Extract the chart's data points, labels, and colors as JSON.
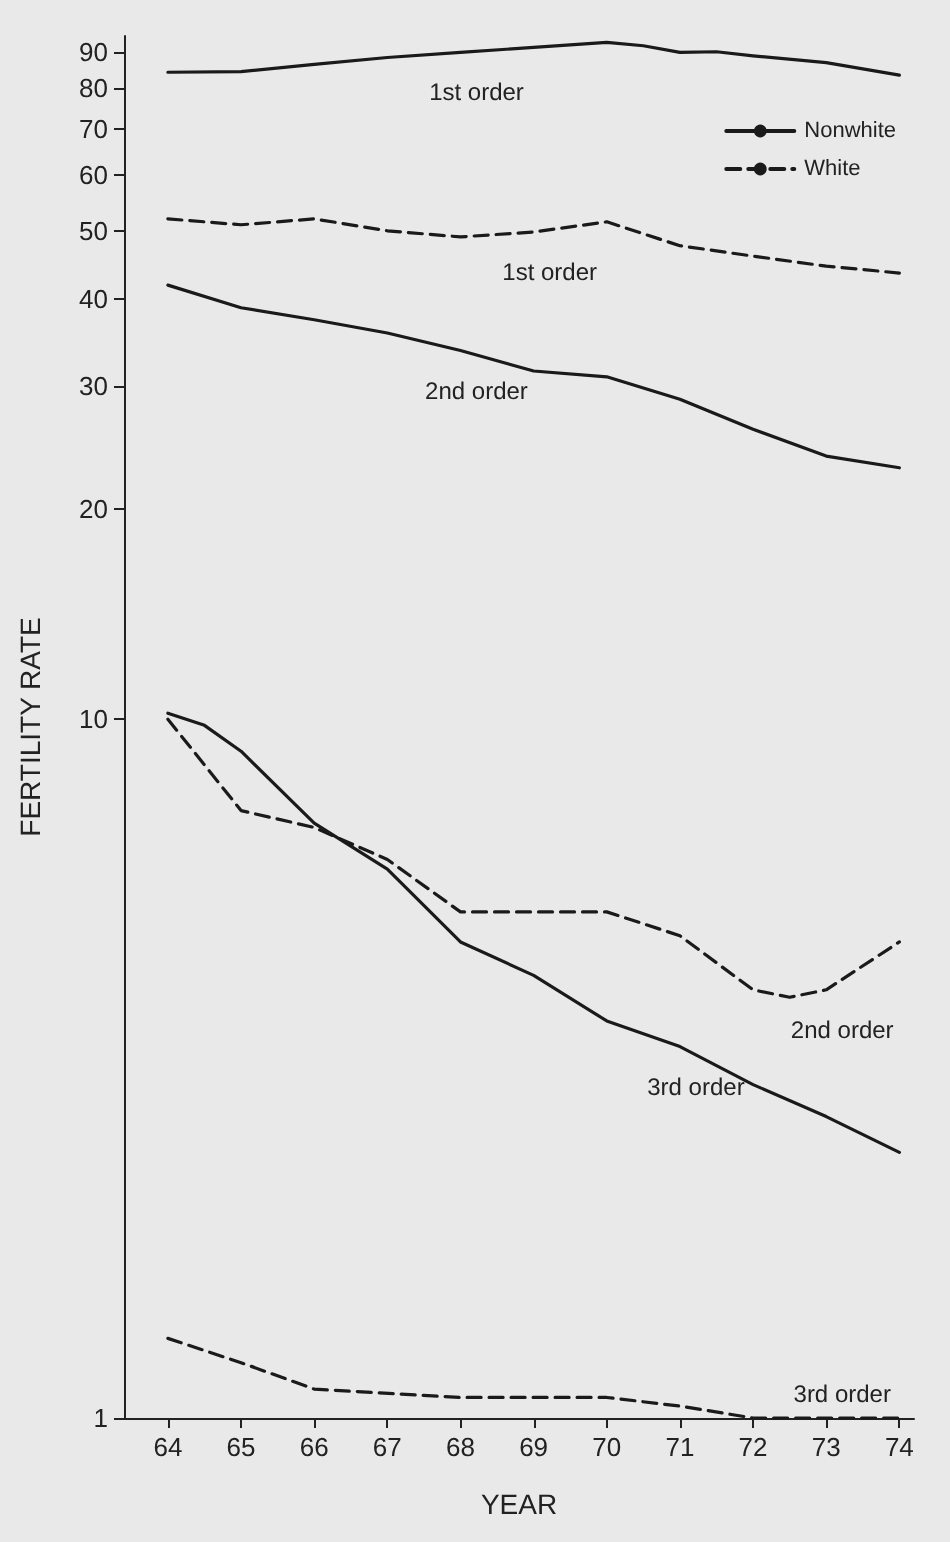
{
  "chart_data": {
    "type": "line",
    "xlabel": "YEAR",
    "ylabel": "FERTILITY RATE",
    "log": "y",
    "xlim": [
      63.4,
      74.2
    ],
    "ylim": [
      1,
      95
    ],
    "xticks": [
      64,
      65,
      66,
      67,
      68,
      69,
      70,
      71,
      72,
      73,
      74
    ],
    "yticks": [
      1,
      10,
      20,
      30,
      40,
      50,
      60,
      70,
      80,
      90
    ],
    "grid": false,
    "marker": "none",
    "legend": "top right",
    "series": [
      {
        "name": "Nonwhite",
        "color": "#1a1a1a",
        "line_style": "solid",
        "x": [
          64,
          65,
          66,
          67,
          68,
          69,
          70,
          70.5,
          71,
          71.5,
          72,
          73,
          74
        ],
        "values": [
          84.3,
          84.5,
          86.5,
          88.5,
          90,
          91.5,
          93,
          92,
          90,
          90.2,
          89,
          87,
          83.5
        ]
      },
      {
        "name": "White",
        "color": "#1a1a1a",
        "line_style": "dashed",
        "x": [
          64,
          65,
          66,
          67,
          68,
          69,
          70,
          71,
          72,
          73,
          74
        ],
        "values": [
          52,
          51,
          52,
          50,
          49,
          49.8,
          51.5,
          47.6,
          46,
          44.5,
          43.5
        ]
      },
      {
        "color": "#1a1a1a",
        "line_style": "solid",
        "x": [
          64,
          65,
          66,
          67,
          68,
          69,
          70,
          71,
          72,
          73,
          74
        ],
        "values": [
          41.8,
          38.8,
          37.3,
          35.7,
          33.7,
          31.5,
          30.9,
          28.7,
          26,
          23.8,
          22.9
        ]
      },
      {
        "color": "#1a1a1a",
        "line_style": "dashed",
        "x": [
          64,
          65,
          66,
          67,
          68,
          69,
          70,
          71,
          72,
          72.5,
          73,
          74
        ],
        "values": [
          10,
          7.4,
          7,
          6.3,
          5.3,
          5.3,
          5.3,
          4.9,
          4.1,
          4,
          4.1,
          4.8
        ]
      },
      {
        "color": "#1a1a1a",
        "line_style": "solid",
        "x": [
          64,
          64.5,
          65,
          66,
          67,
          68,
          69,
          70,
          71,
          72,
          73,
          74
        ],
        "values": [
          10.2,
          9.8,
          9,
          7.1,
          6.1,
          4.8,
          4.3,
          3.7,
          3.4,
          3,
          2.7,
          2.4
        ]
      },
      {
        "color": "#1a1a1a",
        "line_style": "dashed",
        "x": [
          64,
          65,
          66,
          68,
          70,
          71,
          72,
          73,
          74
        ],
        "values": [
          1.3,
          1.2,
          1.1,
          1.07,
          1.07,
          1.04,
          1,
          1,
          1
        ]
      }
    ],
    "annotations": [
      {
        "text": "1st order",
        "x": 68,
        "y": 90
      },
      {
        "text": "1st order",
        "x": 69,
        "y": 49.8
      },
      {
        "text": "2nd order",
        "x": 68,
        "y": 33.7
      },
      {
        "text": "2nd order",
        "x": 73,
        "y": 4.1
      },
      {
        "text": "3rd order",
        "x": 71,
        "y": 3.4
      },
      {
        "text": "3rd order",
        "x": 73,
        "y": 1
      }
    ]
  }
}
